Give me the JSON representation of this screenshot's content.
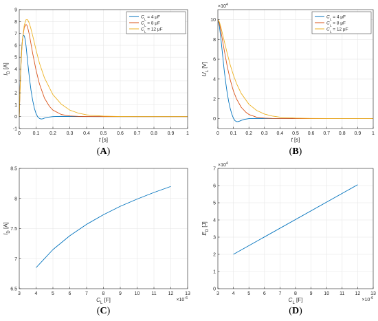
{
  "chart_data": [
    {
      "id": "A",
      "type": "line",
      "panel_label": "A",
      "xlabel": {
        "main": "t",
        "unit": "[s]"
      },
      "ylabel": {
        "main": "I",
        "sub": "D",
        "unit": "[A]"
      },
      "xlim": [
        0,
        1
      ],
      "ylim": [
        -1,
        9
      ],
      "xticks": [
        0,
        0.1,
        0.2,
        0.3,
        0.4,
        0.5,
        0.6,
        0.7,
        0.8,
        0.9,
        1
      ],
      "yticks": [
        -1,
        0,
        1,
        2,
        3,
        4,
        5,
        6,
        7,
        8,
        9
      ],
      "grid": true,
      "legend": {
        "placement": "top-right",
        "entries": [
          {
            "main": "C",
            "sub": "L",
            "rest": " = 4 μF"
          },
          {
            "main": "C",
            "sub": "L",
            "rest": " = 8 μF"
          },
          {
            "main": "C",
            "sub": "L",
            "rest": " = 12 μF"
          }
        ]
      },
      "series": [
        {
          "color": "#0072BD",
          "x": [
            0,
            0.005,
            0.01,
            0.015,
            0.02,
            0.025,
            0.03,
            0.035,
            0.04,
            0.045,
            0.05,
            0.06,
            0.07,
            0.08,
            0.09,
            0.1,
            0.11,
            0.12,
            0.13,
            0.14,
            0.15,
            0.17,
            0.2,
            0.25,
            0.3,
            0.4,
            0.5,
            0.7,
            1.0
          ],
          "y": [
            0,
            2.6,
            4.6,
            5.9,
            6.6,
            6.85,
            6.8,
            6.5,
            6.0,
            5.3,
            4.6,
            3.3,
            2.2,
            1.35,
            0.7,
            0.25,
            -0.02,
            -0.15,
            -0.2,
            -0.18,
            -0.12,
            -0.05,
            0.0,
            0.02,
            0.01,
            0.0,
            0.0,
            0.0,
            0.0
          ]
        },
        {
          "color": "#D95319",
          "x": [
            0,
            0.005,
            0.01,
            0.015,
            0.02,
            0.03,
            0.04,
            0.045,
            0.05,
            0.06,
            0.07,
            0.08,
            0.1,
            0.12,
            0.15,
            0.18,
            0.2,
            0.25,
            0.3,
            0.35,
            0.4,
            0.5,
            0.6,
            0.7,
            0.8,
            1.0
          ],
          "y": [
            0,
            2.4,
            4.3,
            5.7,
            6.6,
            7.5,
            7.75,
            7.7,
            7.5,
            6.9,
            6.1,
            5.3,
            3.9,
            2.75,
            1.55,
            0.85,
            0.55,
            0.18,
            0.06,
            0.02,
            0.01,
            0.0,
            0.0,
            0.0,
            0.0,
            0.0
          ]
        },
        {
          "color": "#EDB120",
          "x": [
            0,
            0.005,
            0.01,
            0.015,
            0.02,
            0.03,
            0.04,
            0.05,
            0.06,
            0.07,
            0.08,
            0.1,
            0.12,
            0.15,
            0.2,
            0.25,
            0.3,
            0.35,
            0.4,
            0.5,
            0.6,
            0.7,
            0.8,
            1.0
          ],
          "y": [
            0,
            2.3,
            4.2,
            5.6,
            6.6,
            7.7,
            8.15,
            8.15,
            7.85,
            7.35,
            6.8,
            5.6,
            4.5,
            3.25,
            1.85,
            1.05,
            0.55,
            0.3,
            0.15,
            0.04,
            0.01,
            0.0,
            0.0,
            0.0
          ]
        }
      ]
    },
    {
      "id": "B",
      "type": "line",
      "panel_label": "B",
      "xlabel": {
        "main": "t",
        "unit": "[s]"
      },
      "ylabel": {
        "main": "U",
        "sub": "L",
        "unit": "[V]"
      },
      "y_exponent": "×10^4",
      "xlim": [
        0,
        1
      ],
      "ylim": [
        -1,
        11
      ],
      "xticks": [
        0,
        0.1,
        0.2,
        0.3,
        0.4,
        0.5,
        0.6,
        0.7,
        0.8,
        0.9,
        1
      ],
      "yticks": [
        0,
        2,
        4,
        6,
        8,
        10
      ],
      "grid": true,
      "legend": {
        "placement": "top-right",
        "entries": [
          {
            "main": "C",
            "sub": "L",
            "rest": " = 4 μF"
          },
          {
            "main": "C",
            "sub": "L",
            "rest": " = 8 μF"
          },
          {
            "main": "C",
            "sub": "L",
            "rest": " = 12 μF"
          }
        ]
      },
      "series": [
        {
          "color": "#0072BD",
          "x": [
            0,
            0.01,
            0.02,
            0.03,
            0.04,
            0.05,
            0.06,
            0.07,
            0.08,
            0.09,
            0.1,
            0.11,
            0.12,
            0.13,
            0.14,
            0.15,
            0.17,
            0.2,
            0.25,
            0.3,
            0.4,
            0.6,
            0.8,
            1.0
          ],
          "y": [
            10,
            9.3,
            8.0,
            6.5,
            5.0,
            3.7,
            2.6,
            1.7,
            1.0,
            0.45,
            0.05,
            -0.2,
            -0.3,
            -0.3,
            -0.25,
            -0.18,
            -0.08,
            0.0,
            0.02,
            0.01,
            0.0,
            0.0,
            0.0,
            0.0
          ]
        },
        {
          "color": "#D95319",
          "x": [
            0,
            0.01,
            0.02,
            0.04,
            0.06,
            0.08,
            0.1,
            0.12,
            0.15,
            0.18,
            0.2,
            0.25,
            0.3,
            0.35,
            0.4,
            0.5,
            0.6,
            0.8,
            1.0
          ],
          "y": [
            10,
            9.6,
            8.8,
            7.0,
            5.3,
            3.9,
            2.8,
            2.0,
            1.15,
            0.65,
            0.42,
            0.14,
            0.05,
            0.02,
            0.01,
            0.0,
            0.0,
            0.0,
            0.0
          ]
        },
        {
          "color": "#EDB120",
          "x": [
            0,
            0.01,
            0.02,
            0.04,
            0.06,
            0.08,
            0.1,
            0.12,
            0.15,
            0.2,
            0.25,
            0.3,
            0.35,
            0.4,
            0.5,
            0.6,
            0.7,
            0.8,
            1.0
          ],
          "y": [
            10,
            9.75,
            9.2,
            7.9,
            6.6,
            5.4,
            4.4,
            3.55,
            2.55,
            1.45,
            0.82,
            0.46,
            0.26,
            0.15,
            0.05,
            0.02,
            0.01,
            0.0,
            0.0
          ]
        }
      ]
    },
    {
      "id": "C",
      "type": "line",
      "panel_label": "C",
      "xlabel": {
        "main": "C",
        "sub": "L",
        "unit": "[F]"
      },
      "ylabel": {
        "main": "I",
        "sub": "D",
        "unit": "[A]"
      },
      "x_exponent": "×10^-6",
      "xlim": [
        3,
        13
      ],
      "ylim": [
        6.5,
        8.5
      ],
      "xticks": [
        3,
        4,
        5,
        6,
        7,
        8,
        9,
        10,
        11,
        12,
        13
      ],
      "yticks": [
        6.5,
        7,
        7.5,
        8,
        8.5
      ],
      "grid": true,
      "series": [
        {
          "color": "#0072BD",
          "x": [
            4,
            5,
            6,
            7,
            8,
            9,
            10,
            11,
            12
          ],
          "y": [
            6.85,
            7.15,
            7.38,
            7.57,
            7.73,
            7.87,
            7.99,
            8.1,
            8.2
          ]
        }
      ]
    },
    {
      "id": "D",
      "type": "line",
      "panel_label": "D",
      "xlabel": {
        "main": "C",
        "sub": "L",
        "unit": "[F]"
      },
      "ylabel": {
        "main": "E",
        "sub": "D",
        "unit": "[J]"
      },
      "x_exponent": "×10^-6",
      "y_exponent": "×10^4",
      "xlim": [
        3,
        13
      ],
      "ylim": [
        0,
        7
      ],
      "xticks": [
        3,
        4,
        5,
        6,
        7,
        8,
        9,
        10,
        11,
        12,
        13
      ],
      "yticks": [
        0,
        1,
        2,
        3,
        4,
        5,
        6,
        7
      ],
      "grid": true,
      "series": [
        {
          "color": "#0072BD",
          "x": [
            4,
            12
          ],
          "y": [
            2.0,
            6.05
          ]
        }
      ]
    }
  ]
}
